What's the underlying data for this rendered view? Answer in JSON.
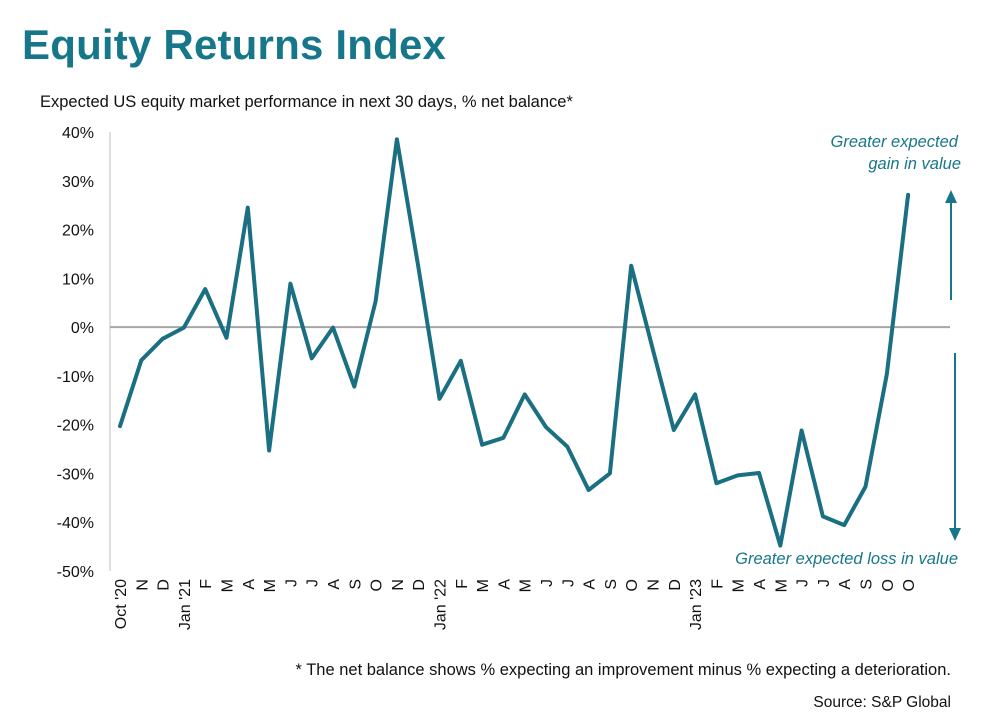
{
  "title": "Equity Returns Index",
  "subtitle": "Expected US equity market performance in next 30 days, % net balance*",
  "footnote": "* The net balance shows % expecting an improvement minus % expecting a deterioration.",
  "source": "Source: S&P Global",
  "colors": {
    "accent": "#17778a",
    "line": "#1a6f82",
    "zero_line": "#a6a6a6",
    "axis": "#bfbfbf"
  },
  "chart_data": {
    "type": "line",
    "title": "Equity Returns Index",
    "ylabel": "",
    "xlabel": "",
    "ylim": [
      -50,
      40
    ],
    "yticks": [
      40,
      30,
      20,
      10,
      0,
      -10,
      -20,
      -30,
      -40,
      -50
    ],
    "ytick_labels": [
      "40%",
      "30%",
      "20%",
      "10%",
      "0%",
      "-10%",
      "-20%",
      "-30%",
      "-40%",
      "-50%"
    ],
    "grid": false,
    "x": [
      "Oct '20",
      "N",
      "D",
      "Jan '21",
      "F",
      "M",
      "A",
      "M",
      "J",
      "J",
      "A",
      "S",
      "O",
      "N",
      "D",
      "Jan '22",
      "F",
      "M",
      "A",
      "M",
      "J",
      "J",
      "A",
      "S",
      "O",
      "N",
      "D",
      "Jan '23",
      "F",
      "M",
      "A",
      "M",
      "J",
      "J",
      "A",
      "S",
      "O",
      "O"
    ],
    "series": [
      {
        "values": [
          -20.3,
          -6.8,
          -2.4,
          -0.1,
          7.8,
          -2.2,
          24.5,
          -25.3,
          8.9,
          -6.4,
          -0.1,
          -12.2,
          5.3,
          38.5,
          12.5,
          -14.7,
          -6.9,
          -24.1,
          -22.7,
          -13.8,
          -20.5,
          -24.5,
          -33.4,
          -30.0,
          12.6,
          -4.3,
          -21.1,
          -13.8,
          -32.0,
          -30.4,
          -29.9,
          -44.8,
          -21.2,
          -38.8,
          -40.6,
          -32.7,
          -9.7,
          27.1
        ]
      }
    ],
    "annotations": [
      {
        "text_lines": [
          "Greater expected",
          "gain in value"
        ],
        "arrow": "up"
      },
      {
        "text_lines": [
          "Greater expected loss in value"
        ],
        "arrow": "down"
      }
    ]
  }
}
